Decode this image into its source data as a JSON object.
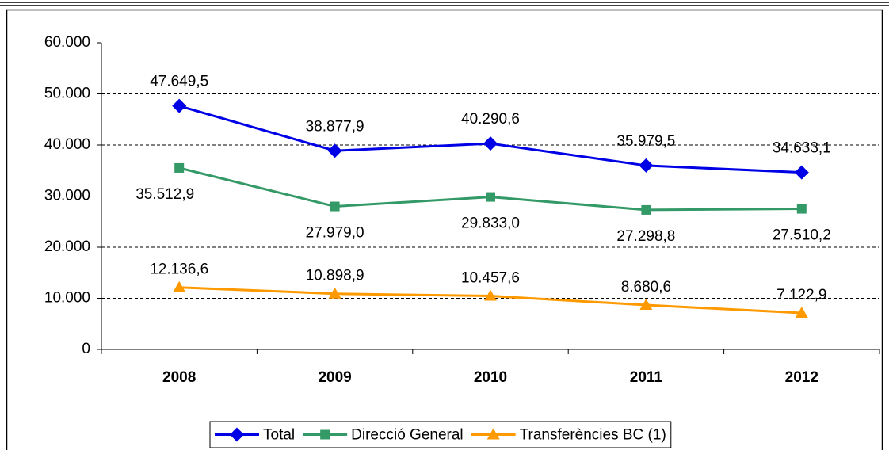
{
  "chart_data": {
    "type": "line",
    "categories": [
      "2008",
      "2009",
      "2010",
      "2011",
      "2012"
    ],
    "series": [
      {
        "name": "Total",
        "color": "#0000e6",
        "marker": "diamond",
        "values": [
          47649.5,
          38877.9,
          40290.6,
          35979.5,
          34633.1
        ],
        "value_labels": [
          "47.649,5",
          "38.877,9",
          "40.290,6",
          "35.979,5",
          "34.633,1"
        ]
      },
      {
        "name": "Direcció General",
        "color": "#339966",
        "marker": "square",
        "values": [
          35512.9,
          27979.0,
          29833.0,
          27298.8,
          27510.2
        ],
        "value_labels": [
          "35.512,9",
          "27.979,0",
          "29.833,0",
          "27.298,8",
          "27.510,2"
        ]
      },
      {
        "name": "Transferències BC (1)",
        "color": "#ff9900",
        "marker": "triangle",
        "values": [
          12136.6,
          10898.9,
          10457.6,
          8680.6,
          7122.9
        ],
        "value_labels": [
          "12.136,6",
          "10.898,9",
          "10.457,6",
          "8.680,6",
          "7.122,9"
        ]
      }
    ],
    "ylim": [
      0,
      60000
    ],
    "yticks": [
      0,
      {
        "value": 10000,
        "label": "10.000"
      },
      {
        "value": 20000,
        "label": "20.000"
      },
      {
        "value": 30000,
        "label": "30.000"
      },
      {
        "value": 40000,
        "label": "40.000"
      },
      {
        "value": 50000,
        "label": "50.000"
      },
      {
        "value": 60000,
        "label": "60.000"
      }
    ],
    "grid": true,
    "legend": "bottom"
  }
}
